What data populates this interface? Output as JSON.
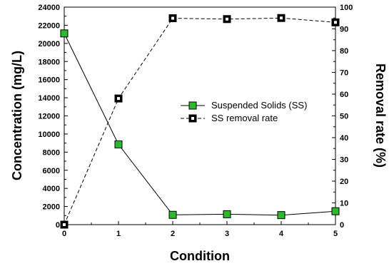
{
  "chart_data": {
    "type": "line",
    "xlabel": "Condition",
    "ylabel_left": "Concentration (mg/L)",
    "ylabel_right": "Removal rate (%)",
    "x": [
      0,
      1,
      2,
      3,
      4,
      5
    ],
    "xlim": [
      0,
      5
    ],
    "ylim_left": [
      0,
      24000
    ],
    "ylim_right": [
      0,
      100
    ],
    "x_ticks": [
      "0",
      "1",
      "2",
      "3",
      "4",
      "5"
    ],
    "y_left_ticks": [
      "0",
      "2000",
      "4000",
      "6000",
      "8000",
      "10000",
      "12000",
      "14000",
      "16000",
      "18000",
      "20000",
      "22000",
      "24000"
    ],
    "y_right_ticks": [
      "0",
      "10",
      "20",
      "30",
      "40",
      "50",
      "60",
      "70",
      "80",
      "90",
      "100"
    ],
    "grid": false,
    "legend_position": "center-right",
    "series": [
      {
        "name": "Suspended Solids (SS)",
        "axis": "left",
        "values": [
          21100,
          8850,
          1080,
          1150,
          1050,
          1480
        ],
        "marker": "filled-square",
        "line_style": "solid",
        "color": "#2db82d"
      },
      {
        "name": "SS removal rate",
        "axis": "right",
        "values": [
          0,
          58,
          94.9,
          94.5,
          95,
          93
        ],
        "marker": "open-square-dot",
        "line_style": "dashed",
        "color": "#000000"
      }
    ]
  }
}
